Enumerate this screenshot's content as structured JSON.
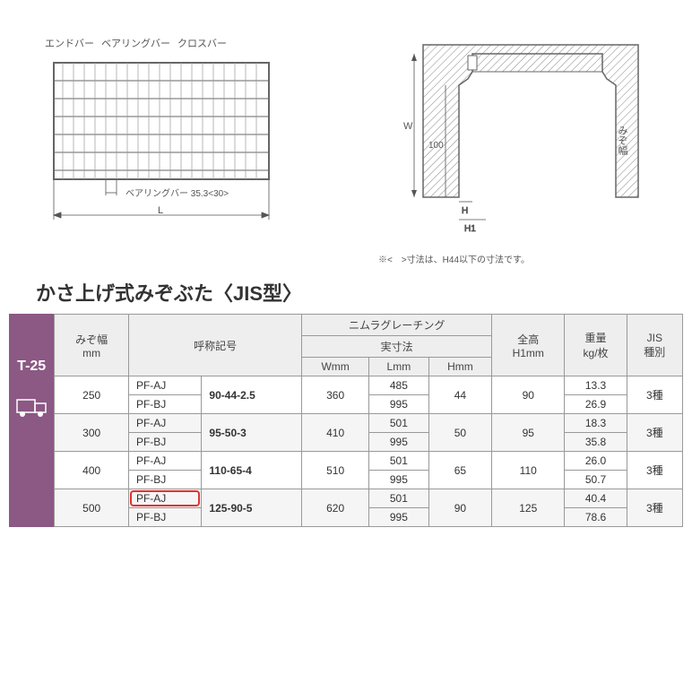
{
  "diagram": {
    "left_labels": [
      "エンドバー",
      "ベアリングバー",
      "クロスバー"
    ],
    "bearing_bar_note": "ベアリングバー 35.3<30>",
    "dim_L": "L",
    "dim_W": "W",
    "dim_H": "H",
    "dim_H1": "H1",
    "dim_100": "100",
    "dim_mizohaba": "みぞ幅",
    "footnote": "※<　>寸法は、H44以下の寸法です。"
  },
  "title": "かさ上げ式みぞぶた〈JIS型〉",
  "side_badge": "T-25",
  "table": {
    "header1": {
      "mizohaba": "みぞ幅\nmm",
      "model": "呼称記号",
      "grating": "ニムラグレーチング",
      "h1": "全高\nH1mm",
      "weight": "重量\nkg/枚",
      "jis": "JIS\n種別"
    },
    "header2": {
      "jissun": "実寸法"
    },
    "header3": {
      "w": "Wmm",
      "l": "Lmm",
      "h": "Hmm"
    },
    "rows": [
      {
        "mizo": "250",
        "pf": "PF-AJ",
        "code": "90-44-2.5",
        "w": "360",
        "l": "485",
        "h": "44",
        "h1": "90",
        "kg": "13.3",
        "jis": "3種",
        "alt": false
      },
      {
        "mizo": "",
        "pf": "PF-BJ",
        "code": "",
        "w": "",
        "l": "995",
        "h": "",
        "h1": "",
        "kg": "26.9",
        "jis": "",
        "alt": false
      },
      {
        "mizo": "300",
        "pf": "PF-AJ",
        "code": "95-50-3",
        "w": "410",
        "l": "501",
        "h": "50",
        "h1": "95",
        "kg": "18.3",
        "jis": "3種",
        "alt": true
      },
      {
        "mizo": "",
        "pf": "PF-BJ",
        "code": "",
        "w": "",
        "l": "995",
        "h": "",
        "h1": "",
        "kg": "35.8",
        "jis": "",
        "alt": true
      },
      {
        "mizo": "400",
        "pf": "PF-AJ",
        "code": "110-65-4",
        "w": "510",
        "l": "501",
        "h": "65",
        "h1": "110",
        "kg": "26.0",
        "jis": "3種",
        "alt": false
      },
      {
        "mizo": "",
        "pf": "PF-BJ",
        "code": "",
        "w": "",
        "l": "995",
        "h": "",
        "h1": "",
        "kg": "50.7",
        "jis": "",
        "alt": false
      },
      {
        "mizo": "500",
        "pf": "PF-AJ",
        "code": "125-90-5",
        "w": "620",
        "l": "501",
        "h": "90",
        "h1": "125",
        "kg": "40.4",
        "jis": "3種",
        "alt": true,
        "highlight": true
      },
      {
        "mizo": "",
        "pf": "PF-BJ",
        "code": "",
        "w": "",
        "l": "995",
        "h": "",
        "h1": "",
        "kg": "78.6",
        "jis": "",
        "alt": true
      }
    ],
    "colors": {
      "header_bg": "#eeeeee",
      "alt_bg": "#f5f5f5",
      "border": "#999999",
      "highlight": "#d33333",
      "badge_bg": "#8c5884"
    }
  }
}
